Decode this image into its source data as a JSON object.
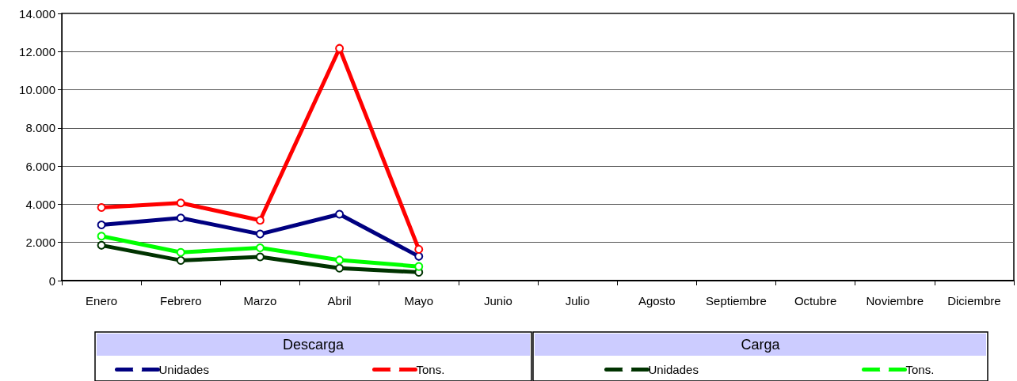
{
  "chart_data": {
    "type": "line",
    "categories": [
      "Enero",
      "Febrero",
      "Marzo",
      "Abril",
      "Mayo",
      "Junio",
      "Julio",
      "Agosto",
      "Septiembre",
      "Octubre",
      "Noviembre",
      "Diciembre"
    ],
    "series": [
      {
        "name": "Unidades",
        "color": "#000080",
        "values": [
          2920,
          3280,
          2440,
          3480,
          1270,
          null,
          null,
          null,
          null,
          null,
          null,
          null
        ]
      },
      {
        "name": "Tons.",
        "color": "#ff0000",
        "values": [
          3830,
          4070,
          3160,
          12170,
          1640,
          null,
          null,
          null,
          null,
          null,
          null,
          null
        ]
      },
      {
        "name": "Unidades",
        "color": "#003300",
        "values": [
          1850,
          1060,
          1240,
          650,
          440,
          null,
          null,
          null,
          null,
          null,
          null,
          null
        ]
      },
      {
        "name": "Tons.",
        "color": "#00ff00",
        "values": [
          2330,
          1480,
          1720,
          1080,
          740,
          null,
          null,
          null,
          null,
          null,
          null,
          null
        ]
      }
    ],
    "ylim": [
      0,
      14000
    ],
    "yticks": [
      0,
      {
        "value": 2000,
        "label": "2.000"
      },
      {
        "value": 4000,
        "label": "4.000"
      },
      {
        "value": 6000,
        "label": "6.000"
      },
      {
        "value": 8000,
        "label": "8.000"
      },
      {
        "value": 10000,
        "label": "10.000"
      },
      {
        "value": 12000,
        "label": "12.000"
      },
      {
        "value": 14000,
        "label": "14.000"
      }
    ],
    "annotations": [
      "Descarga",
      "Carga"
    ],
    "grid": "y",
    "legend": "bottom",
    "marker": "circle",
    "line_style": "solid"
  }
}
